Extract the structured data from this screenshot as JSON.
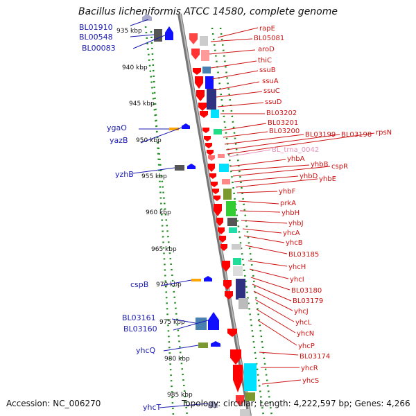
{
  "title": "Bacillus licheniformis ATCC 14580, complete genome",
  "footer": {
    "accession": "Accession: NC_006270",
    "stats": "Topology: circular; Length: 4,222,597 bp; Genes: 4,266"
  },
  "colors": {
    "backbone": "#8a8a8a",
    "tick": "#1a8a1a",
    "label_left": "#1a1ab0",
    "label_right": "#cc1111",
    "label_trna": "#e890b8",
    "red": "#ff0000",
    "blue": "#1010ff",
    "orange": "#ffa500",
    "gray": "#888888",
    "steel": "#4a80b0",
    "olive": "#7a9a30",
    "cyan": "#00e0ff"
  },
  "scale_ticks": [
    "935 kbp",
    "940 kbp",
    "945 kbp",
    "950 kbp",
    "955 kbp",
    "960 kbp",
    "965 kbp",
    "970 kbp",
    "975 kbp",
    "980 kbp",
    "985 kbp"
  ],
  "left_labels": [
    "BL01910",
    "BL00548",
    "BL00083",
    "ygaO",
    "yazB",
    "yzhB",
    "cspB",
    "BL03161",
    "BL03160",
    "yhcQ",
    "yhcT"
  ],
  "right_labels": [
    "rapE",
    "BL05081",
    "aroD",
    "thiC",
    "ssuB",
    "ssuA",
    "ssuC",
    "ssuD",
    "BL03202",
    "BL03201",
    "BL03200",
    "BL03199",
    "BL03198",
    "rpsN",
    "BL_trna_0042",
    "yhbA",
    "yhbB",
    "cspR",
    "yhbD",
    "yhbE",
    "yhbF",
    "prkA",
    "yhbH",
    "yhbJ",
    "yhcA",
    "yhcB",
    "BL03185",
    "yhcH",
    "yhcI",
    "BL03180",
    "BL03179",
    "yhcJ",
    "yhcL",
    "yhcN",
    "yhcP",
    "BL03174",
    "yhcR",
    "yhcS"
  ]
}
